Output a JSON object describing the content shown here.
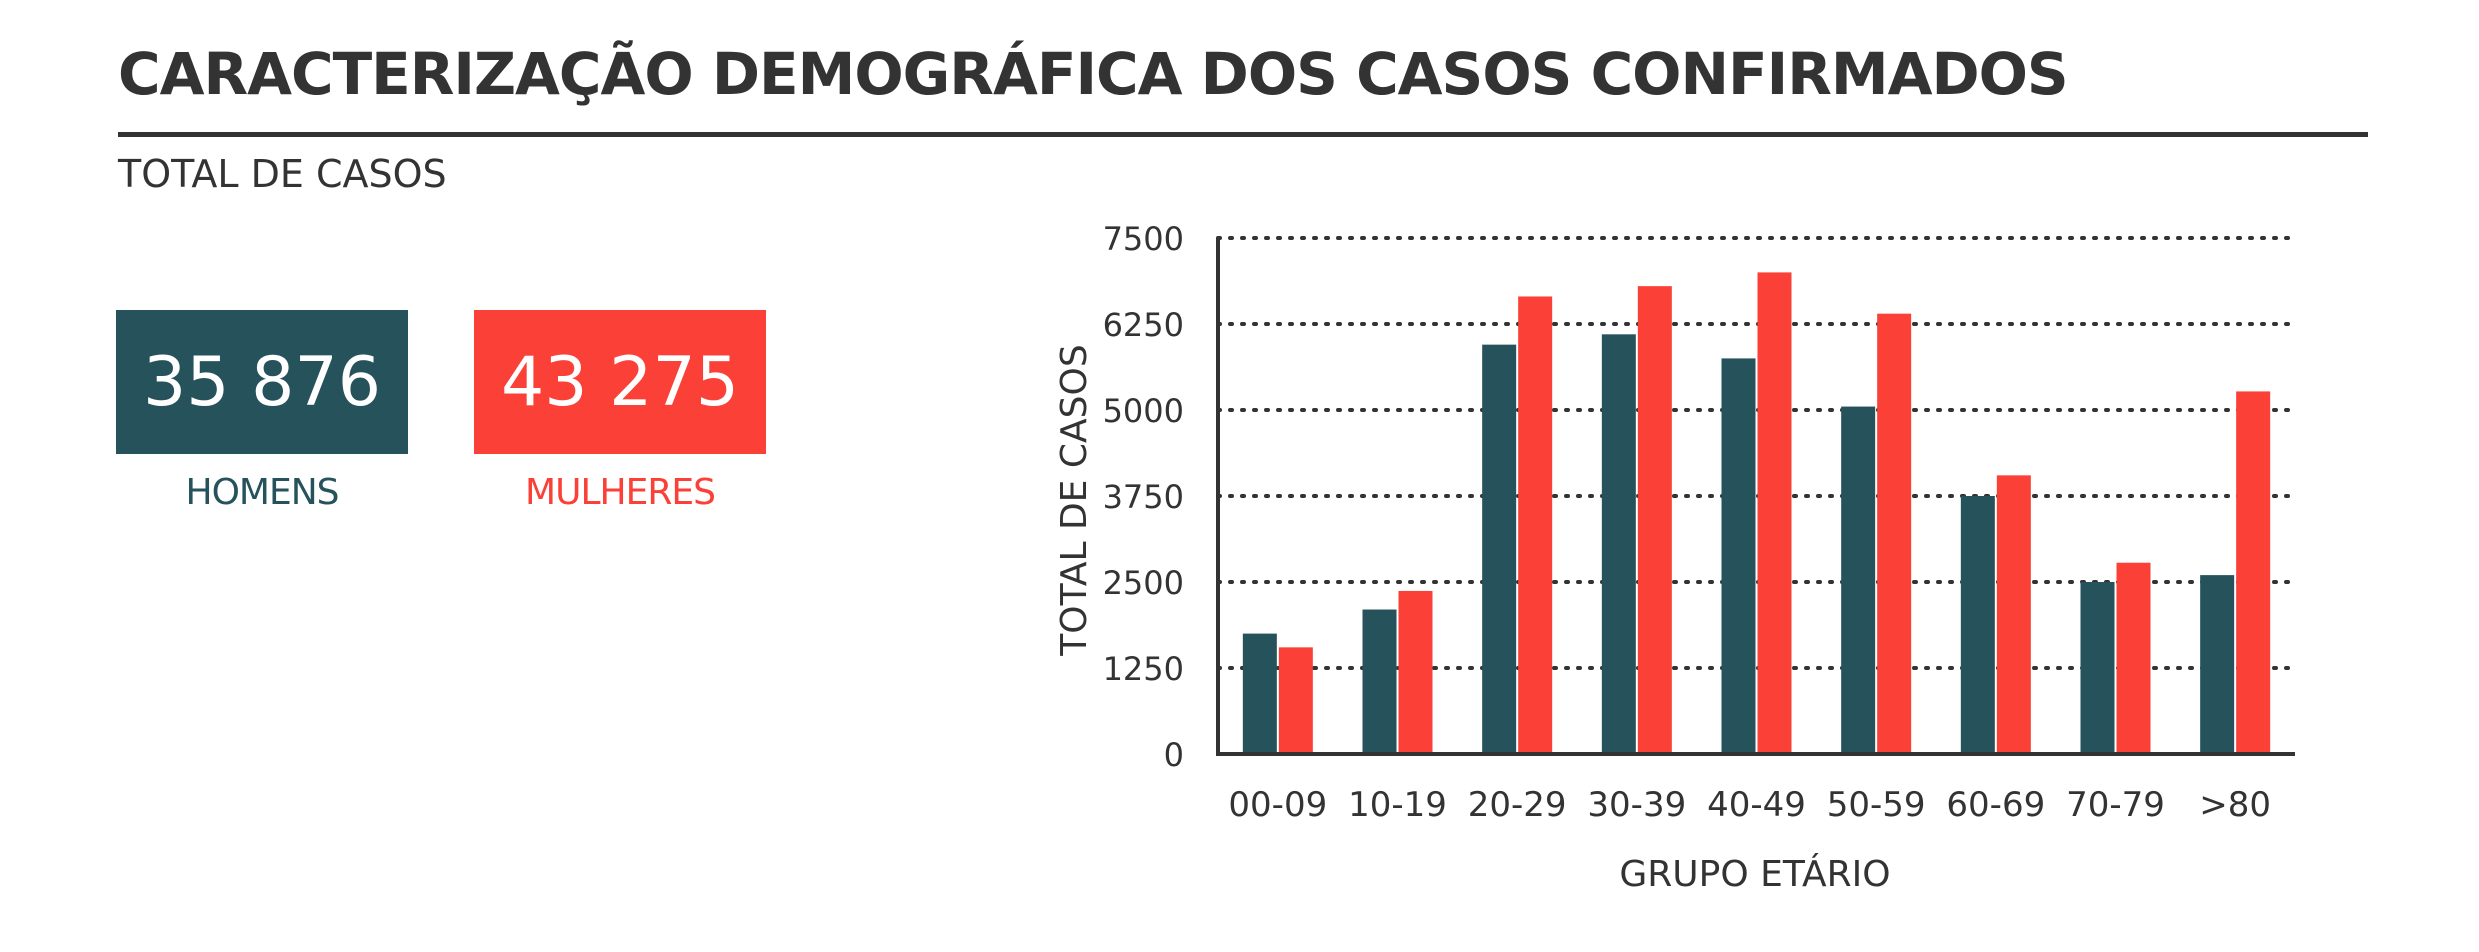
{
  "header": {
    "title": "CARACTERIZAÇÃO DEMOGRÁFICA DOS CASOS CONFIRMADOS",
    "subtitle": "TOTAL DE CASOS"
  },
  "totals": {
    "men": {
      "value": "35 876",
      "label": "HOMENS",
      "color": "#26525c"
    },
    "women": {
      "value": "43 275",
      "label": "MULHERES",
      "color": "#fa4037"
    }
  },
  "chart_data": {
    "type": "bar",
    "categories": [
      "00-09",
      "10-19",
      "20-29",
      "30-39",
      "40-49",
      "50-59",
      "60-69",
      "70-79",
      ">80"
    ],
    "series": [
      {
        "values": [
          1750,
          2100,
          5950,
          6100,
          5750,
          5050,
          3750,
          2500,
          2600
        ],
        "color": "#26525c"
      },
      {
        "values": [
          1550,
          2370,
          6650,
          6800,
          7000,
          6400,
          4050,
          2780,
          5270
        ],
        "color": "#fa4037"
      }
    ],
    "xlabel": "GRUPO ETÁRIO",
    "ylabel": "TOTAL DE CASOS",
    "ylim": [
      0,
      7500
    ],
    "yticks": [
      "0",
      "1250",
      "2500",
      "3750",
      "5000",
      "6250",
      "7500"
    ],
    "grid": true,
    "grid_style": "dotted"
  }
}
